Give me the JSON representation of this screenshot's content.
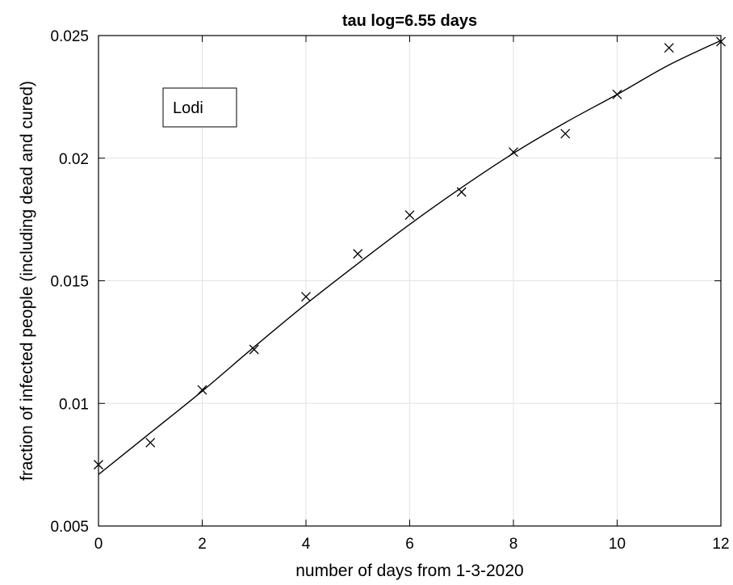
{
  "chart_data": {
    "type": "scatter",
    "title": "tau log=6.55 days",
    "xlabel": "number of days from 1-3-2020",
    "ylabel": "fraction of infected people (including dead and cured)",
    "xlim": [
      0,
      12
    ],
    "ylim": [
      0.005,
      0.025
    ],
    "x_ticks": [
      0,
      2,
      4,
      6,
      8,
      10,
      12
    ],
    "x_tick_labels": [
      "0",
      "2",
      "4",
      "6",
      "8",
      "10",
      "12"
    ],
    "y_ticks": [
      0.005,
      0.01,
      0.015,
      0.02,
      0.025
    ],
    "y_tick_labels": [
      "0.005",
      "0.01",
      "0.015",
      "0.02",
      "0.025"
    ],
    "grid": true,
    "legend": {
      "text": "Lodi",
      "placement": "top-left"
    },
    "series": [
      {
        "name": "Lodi",
        "kind": "markers",
        "marker": "x",
        "x": [
          0,
          1,
          2,
          3,
          4,
          5,
          6,
          7,
          8,
          9,
          10,
          11,
          12
        ],
        "y": [
          0.0075,
          0.0084,
          0.01055,
          0.0122,
          0.01435,
          0.0161,
          0.01768,
          0.01862,
          0.02025,
          0.021,
          0.0226,
          0.0245,
          0.02475
        ]
      },
      {
        "kind": "line",
        "x": [
          0,
          1,
          2,
          3,
          4,
          5,
          6,
          7,
          8,
          9,
          10,
          11,
          12
        ],
        "y": [
          0.0071,
          0.0088,
          0.0105,
          0.0123,
          0.01405,
          0.0157,
          0.0173,
          0.0188,
          0.0202,
          0.02145,
          0.0226,
          0.0238,
          0.0248
        ]
      }
    ]
  }
}
